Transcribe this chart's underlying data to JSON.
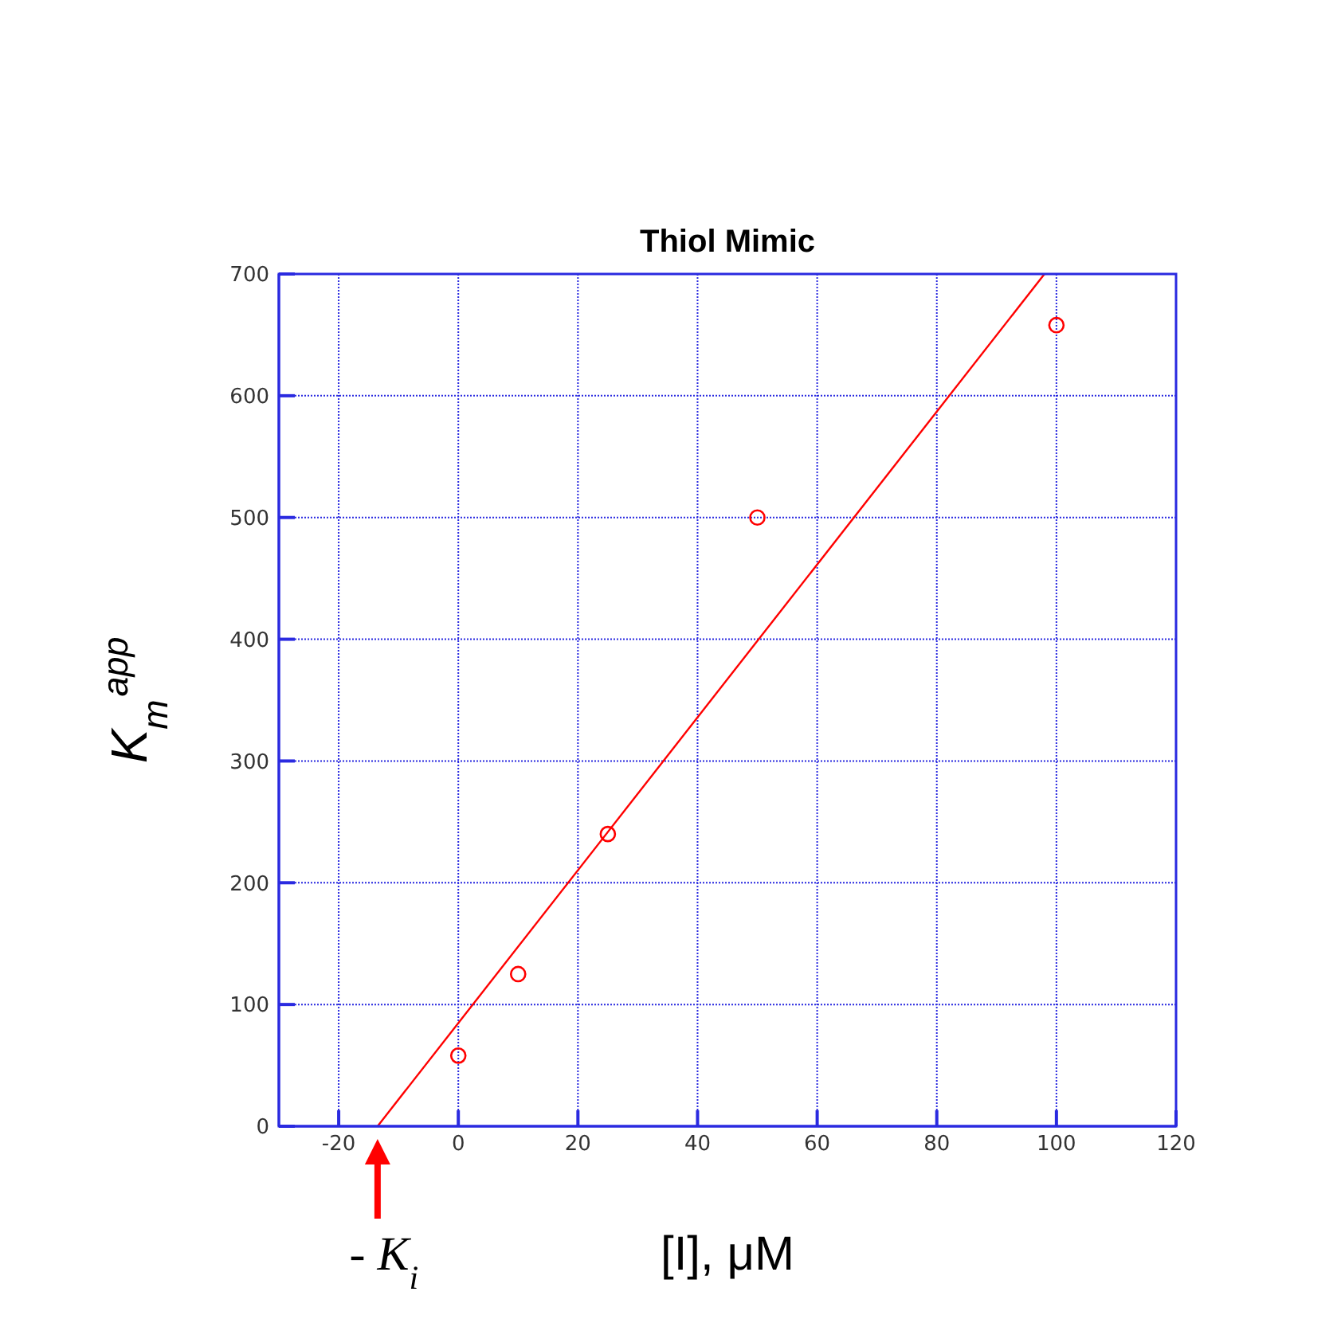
{
  "chart_data": {
    "type": "scatter",
    "title": "Thiol Mimic",
    "xlabel": "[I], μM",
    "ylabel": "K$_{m}$$^{app}$",
    "xlim": [
      -30,
      120
    ],
    "xticks": [
      -20,
      0,
      20,
      40,
      60,
      80,
      100,
      120
    ],
    "ylim": [
      0,
      700
    ],
    "yticks": [
      0,
      100,
      200,
      300,
      400,
      500,
      600,
      700
    ],
    "grid": true,
    "series": [
      {
        "color": "#ff0000",
        "marker": "circle",
        "x": [
          0,
          10,
          25,
          50,
          100
        ],
        "values": [
          58,
          125,
          240,
          500,
          658
        ]
      },
      {
        "type": "line",
        "color": "#ff0000",
        "marker": "none",
        "x": [
          -13.5,
          98
        ],
        "values": [
          0,
          700
        ]
      }
    ],
    "annotations": [
      {
        "text": "- K$_{i}$",
        "x": -13.5,
        "y": 0
      }
    ]
  }
}
